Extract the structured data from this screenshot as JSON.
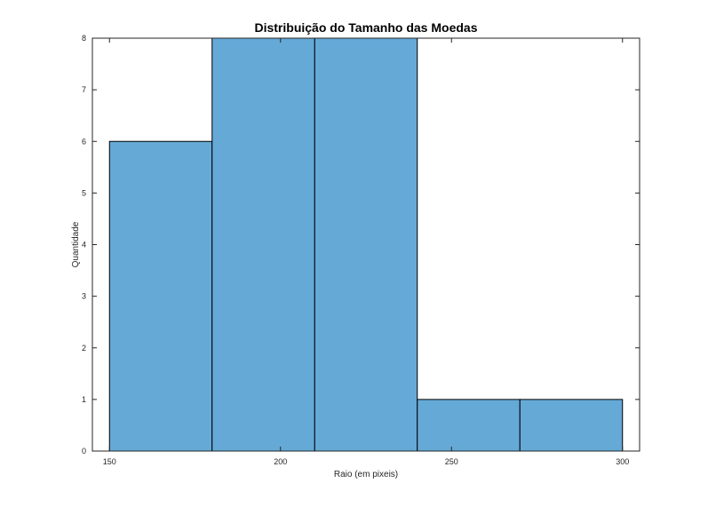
{
  "chart_data": {
    "type": "bar",
    "title": "Distribuição do Tamanho das Moedas",
    "xlabel": "Raio (em pixeis)",
    "ylabel": "Quantidade",
    "bin_edges": [
      150,
      180,
      210,
      240,
      270,
      300
    ],
    "values": [
      6,
      8,
      8,
      1,
      1
    ],
    "xlim": [
      145,
      305
    ],
    "ylim": [
      0,
      8
    ],
    "xticks": [
      150,
      200,
      250,
      300
    ],
    "yticks": [
      0,
      1,
      2,
      3,
      4,
      5,
      6,
      7,
      8
    ],
    "bar_color": "#65a9d7",
    "edge_color": "#000000",
    "grid": false,
    "box": true
  }
}
